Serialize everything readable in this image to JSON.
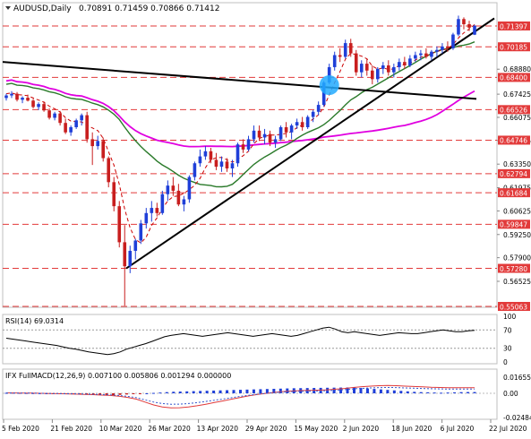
{
  "header": {
    "symbol": "AUDUSD,Daily",
    "ohlc": "0.70891 0.71459 0.70866 0.71412"
  },
  "chart_data": {
    "type": "candlestick",
    "symbol": "AUDUSD",
    "timeframe": "Daily",
    "price_axis_ticks": [
      "0.68880",
      "0.67425",
      "0.66075",
      "0.64725",
      "0.63350",
      "0.61975",
      "0.60625",
      "0.59250",
      "0.57900",
      "0.56525"
    ],
    "horizontal_levels": [
      {
        "label": "0.71397",
        "value": 0.71397
      },
      {
        "label": "0.70185",
        "value": 0.70185
      },
      {
        "label": "0.68400",
        "value": 0.684
      },
      {
        "label": "0.66526",
        "value": 0.66526
      },
      {
        "label": "0.64746",
        "value": 0.64746
      },
      {
        "label": "0.62794",
        "value": 0.62794
      },
      {
        "label": "0.61684",
        "value": 0.61684
      },
      {
        "label": "0.59847",
        "value": 0.59847
      },
      {
        "label": "0.57280",
        "value": 0.5728
      },
      {
        "label": "0.55063",
        "value": 0.55063
      }
    ],
    "x_tick_labels": [
      "5 Feb 2020",
      "21 Feb 2020",
      "10 Mar 2020",
      "26 Mar 2020",
      "13 Apr 2020",
      "29 Apr 2020",
      "15 May 2020",
      "2 Jun 2020",
      "18 Jun 2020",
      "6 Jul 2020",
      "22 Jul 2020"
    ],
    "candles": [
      [
        0.672,
        0.6745,
        0.6705,
        0.6735
      ],
      [
        0.6735,
        0.676,
        0.672,
        0.6745
      ],
      [
        0.6745,
        0.6755,
        0.67,
        0.671
      ],
      [
        0.671,
        0.673,
        0.669,
        0.6722
      ],
      [
        0.6722,
        0.674,
        0.67,
        0.6705
      ],
      [
        0.6705,
        0.6715,
        0.666,
        0.6668
      ],
      [
        0.6668,
        0.6695,
        0.665,
        0.6685
      ],
      [
        0.6685,
        0.67,
        0.664,
        0.6648
      ],
      [
        0.6648,
        0.666,
        0.6595,
        0.6605
      ],
      [
        0.6605,
        0.664,
        0.659,
        0.663
      ],
      [
        0.663,
        0.6645,
        0.656,
        0.6575
      ],
      [
        0.6575,
        0.66,
        0.651,
        0.652
      ],
      [
        0.652,
        0.656,
        0.65,
        0.655
      ],
      [
        0.655,
        0.66,
        0.654,
        0.659
      ],
      [
        0.659,
        0.663,
        0.656,
        0.662
      ],
      [
        0.662,
        0.664,
        0.646,
        0.648
      ],
      [
        0.648,
        0.652,
        0.633,
        0.644
      ],
      [
        0.644,
        0.65,
        0.642,
        0.647
      ],
      [
        0.647,
        0.649,
        0.635,
        0.637
      ],
      [
        0.637,
        0.638,
        0.62,
        0.623
      ],
      [
        0.623,
        0.626,
        0.606,
        0.609
      ],
      [
        0.609,
        0.612,
        0.585,
        0.588
      ],
      [
        0.588,
        0.598,
        0.551,
        0.574
      ],
      [
        0.574,
        0.586,
        0.57,
        0.583
      ],
      [
        0.583,
        0.59,
        0.578,
        0.589
      ],
      [
        0.589,
        0.601,
        0.587,
        0.599
      ],
      [
        0.599,
        0.608,
        0.596,
        0.605
      ],
      [
        0.605,
        0.612,
        0.6,
        0.608
      ],
      [
        0.608,
        0.611,
        0.603,
        0.605
      ],
      [
        0.605,
        0.618,
        0.604,
        0.616
      ],
      [
        0.616,
        0.624,
        0.612,
        0.621
      ],
      [
        0.621,
        0.626,
        0.615,
        0.618
      ],
      [
        0.618,
        0.622,
        0.609,
        0.61
      ],
      [
        0.61,
        0.615,
        0.606,
        0.613
      ],
      [
        0.613,
        0.627,
        0.611,
        0.626
      ],
      [
        0.626,
        0.635,
        0.624,
        0.634
      ],
      [
        0.634,
        0.642,
        0.632,
        0.638
      ],
      [
        0.638,
        0.644,
        0.636,
        0.641
      ],
      [
        0.641,
        0.643,
        0.634,
        0.636
      ],
      [
        0.636,
        0.64,
        0.63,
        0.632
      ],
      [
        0.632,
        0.638,
        0.629,
        0.635
      ],
      [
        0.635,
        0.637,
        0.629,
        0.631
      ],
      [
        0.631,
        0.636,
        0.626,
        0.634
      ],
      [
        0.634,
        0.646,
        0.632,
        0.645
      ],
      [
        0.645,
        0.648,
        0.64,
        0.642
      ],
      [
        0.642,
        0.65,
        0.641,
        0.648
      ],
      [
        0.648,
        0.656,
        0.646,
        0.653
      ],
      [
        0.653,
        0.656,
        0.647,
        0.649
      ],
      [
        0.649,
        0.654,
        0.645,
        0.651
      ],
      [
        0.651,
        0.653,
        0.644,
        0.646
      ],
      [
        0.646,
        0.65,
        0.643,
        0.648
      ],
      [
        0.648,
        0.656,
        0.647,
        0.655
      ],
      [
        0.655,
        0.658,
        0.649,
        0.652
      ],
      [
        0.652,
        0.657,
        0.648,
        0.656
      ],
      [
        0.656,
        0.66,
        0.654,
        0.658
      ],
      [
        0.658,
        0.661,
        0.653,
        0.655
      ],
      [
        0.655,
        0.662,
        0.654,
        0.661
      ],
      [
        0.661,
        0.665,
        0.658,
        0.664
      ],
      [
        0.664,
        0.67,
        0.662,
        0.668
      ],
      [
        0.668,
        0.682,
        0.667,
        0.681
      ],
      [
        0.681,
        0.692,
        0.68,
        0.69
      ],
      [
        0.69,
        0.699,
        0.688,
        0.697
      ],
      [
        0.697,
        0.701,
        0.693,
        0.696
      ],
      [
        0.696,
        0.706,
        0.695,
        0.704
      ],
      [
        0.704,
        0.7065,
        0.696,
        0.698
      ],
      [
        0.698,
        0.7,
        0.685,
        0.687
      ],
      [
        0.687,
        0.694,
        0.684,
        0.692
      ],
      [
        0.692,
        0.695,
        0.685,
        0.688
      ],
      [
        0.688,
        0.691,
        0.68,
        0.683
      ],
      [
        0.683,
        0.69,
        0.681,
        0.689
      ],
      [
        0.689,
        0.693,
        0.686,
        0.691
      ],
      [
        0.691,
        0.694,
        0.685,
        0.687
      ],
      [
        0.687,
        0.692,
        0.684,
        0.69
      ],
      [
        0.69,
        0.695,
        0.688,
        0.693
      ],
      [
        0.693,
        0.696,
        0.689,
        0.691
      ],
      [
        0.691,
        0.697,
        0.69,
        0.695
      ],
      [
        0.695,
        0.699,
        0.693,
        0.697
      ],
      [
        0.697,
        0.7,
        0.694,
        0.698
      ],
      [
        0.698,
        0.701,
        0.695,
        0.696
      ],
      [
        0.696,
        0.7,
        0.694,
        0.699
      ],
      [
        0.699,
        0.702,
        0.696,
        0.7
      ],
      [
        0.7,
        0.704,
        0.698,
        0.702
      ],
      [
        0.702,
        0.705,
        0.699,
        0.701
      ],
      [
        0.701,
        0.71,
        0.7,
        0.709
      ],
      [
        0.709,
        0.72,
        0.708,
        0.718
      ],
      [
        0.718,
        0.719,
        0.712,
        0.715
      ],
      [
        0.715,
        0.717,
        0.711,
        0.713
      ],
      [
        0.7089,
        0.7146,
        0.7087,
        0.7141
      ]
    ],
    "overlays": [
      {
        "name": "red_ma",
        "color": "#cc0000",
        "style": "dashed"
      },
      {
        "name": "green_ma",
        "color": "#2a7a2a"
      },
      {
        "name": "magenta_ma",
        "color": "#e000e0"
      },
      {
        "name": "trendline_down",
        "color": "#000000",
        "from": {
          "x": "5 Feb 2020",
          "y": 0.693
        },
        "to": {
          "x": "22 Jul 2020",
          "y": 0.6715
        }
      },
      {
        "name": "trendline_up",
        "color": "#000000",
        "from": {
          "x": "19 Mar 2020",
          "y": 0.5728
        },
        "to": {
          "x": "27 Jul 2020",
          "y": 0.7184
        }
      }
    ],
    "highlight_marker": {
      "color": "#22aaff",
      "x": "28 May 2020",
      "y": 0.6795
    },
    "rsi": {
      "label": "RSI(14) 69.0314",
      "ticks": [
        "100",
        "70",
        "30",
        "0"
      ],
      "values": [
        52,
        50,
        48,
        46,
        44,
        42,
        40,
        38,
        36,
        33,
        30,
        28,
        25,
        22,
        20,
        18,
        16,
        18,
        22,
        28,
        32,
        36,
        40,
        45,
        50,
        55,
        58,
        60,
        62,
        60,
        58,
        56,
        58,
        60,
        62,
        64,
        62,
        60,
        58,
        56,
        58,
        60,
        62,
        60,
        58,
        56,
        58,
        62,
        66,
        70,
        74,
        76,
        72,
        66,
        64,
        66,
        64,
        62,
        60,
        58,
        60,
        62,
        64,
        63,
        62,
        62,
        64,
        66,
        68,
        70,
        68,
        66,
        66,
        68,
        69
      ]
    },
    "macd": {
      "label": "IFX FullMACD(12,26,9) 0.007100 0.005806 0.001294 0.000000",
      "ticks": [
        "0.016556",
        "0.00",
        "-0.024842"
      ],
      "histogram": [
        0.0005,
        0.0006,
        0.0004,
        0.0003,
        0.0002,
        0.0001,
        0.0,
        -0.0002,
        -0.0004,
        -0.0006,
        -0.0008,
        -0.001,
        -0.0012,
        -0.0014,
        -0.0016,
        -0.0018,
        -0.002,
        -0.0016,
        -0.0012,
        -0.0008,
        -0.0004,
        0.0,
        0.0004,
        0.0008,
        0.0012,
        0.0016,
        0.0018,
        0.002,
        0.0022,
        0.0024,
        0.0026,
        0.0028,
        0.003,
        0.0032,
        0.0034,
        0.0036,
        0.0038,
        0.004,
        0.0042,
        0.0044,
        0.0046,
        0.0048,
        0.005,
        0.0052,
        0.0053,
        0.0054,
        0.0055,
        0.0056,
        0.0057,
        0.0058,
        0.0059,
        0.006,
        0.006,
        0.0055,
        0.005,
        0.0045,
        0.004,
        0.0035,
        0.003,
        0.0025,
        0.002,
        0.0015,
        0.0012,
        0.001,
        0.0008,
        0.0006,
        0.0008,
        0.001,
        0.0012,
        0.0013,
        0.0013
      ],
      "signal": [
        0.0005,
        0.0004,
        0.0003,
        0.0002,
        0.0,
        -0.0002,
        -0.0004,
        -0.0006,
        -0.0008,
        -0.0011,
        -0.0014,
        -0.0018,
        -0.0022,
        -0.003,
        -0.0042,
        -0.006,
        -0.009,
        -0.012,
        -0.014,
        -0.015,
        -0.0148,
        -0.014,
        -0.0128,
        -0.0112,
        -0.0095,
        -0.0078,
        -0.006,
        -0.0042,
        -0.0026,
        -0.0012,
        0.0,
        0.001,
        0.0018,
        0.0024,
        0.0028,
        0.003,
        0.0032,
        0.0036,
        0.0042,
        0.005,
        0.006,
        0.0068,
        0.0074,
        0.0078,
        0.008,
        0.0078,
        0.0074,
        0.007,
        0.0066,
        0.0062,
        0.006,
        0.0058,
        0.0057,
        0.0058,
        0.0058
      ]
    }
  }
}
